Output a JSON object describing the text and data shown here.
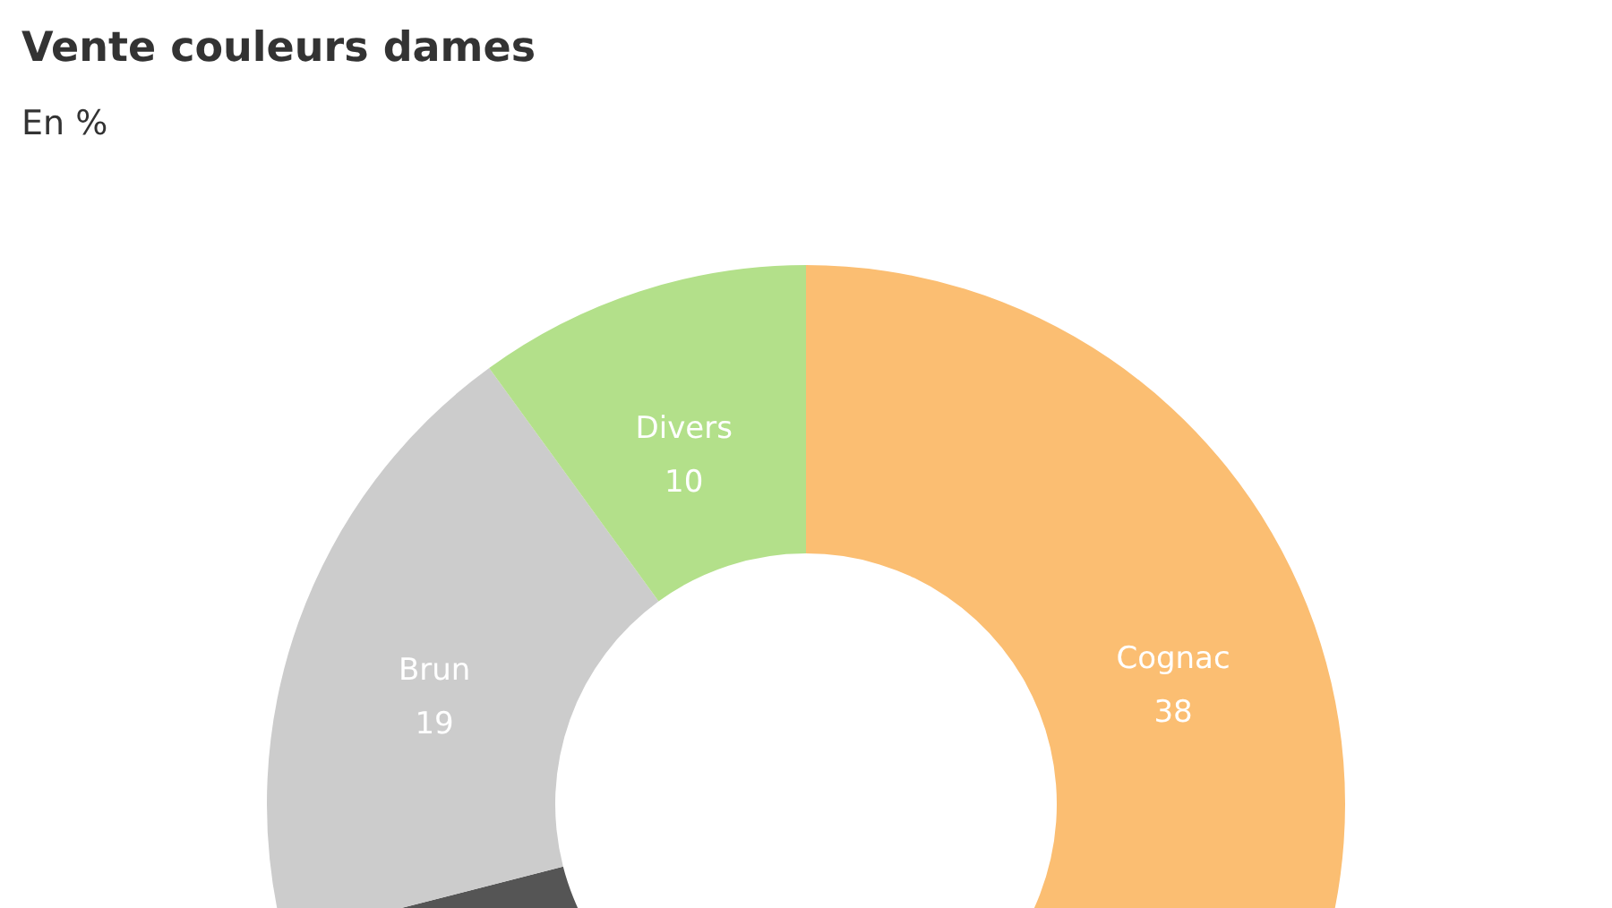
{
  "chart_data": {
    "type": "donut",
    "title": "Vente couleurs dames",
    "subtitle": "En %",
    "categories": [
      "Cognac",
      null,
      "Brun",
      "Divers"
    ],
    "values": [
      38,
      33,
      19,
      10
    ],
    "colors": [
      "#fbbe72",
      "#555555",
      "#cccccc",
      "#b3e08a"
    ],
    "value_labels": [
      "38",
      null,
      "19",
      "10"
    ]
  }
}
